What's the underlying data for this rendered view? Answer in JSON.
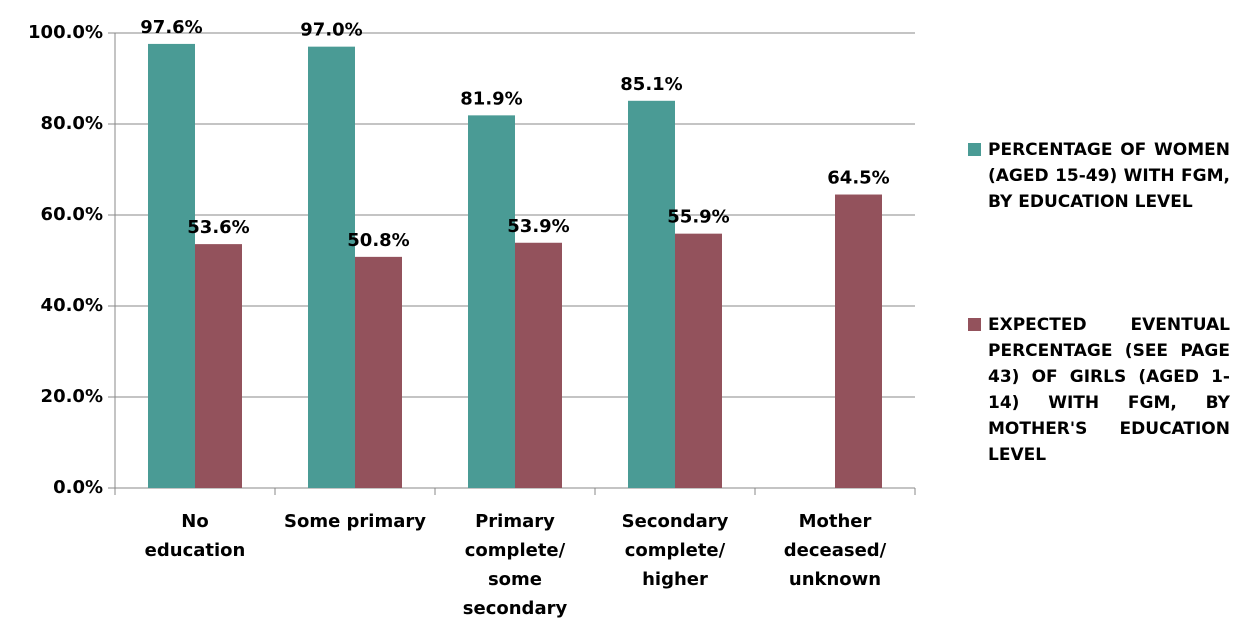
{
  "chart_data": {
    "type": "bar",
    "categories": [
      [
        "No",
        "education"
      ],
      [
        "Some primary"
      ],
      [
        "Primary",
        "complete/",
        "some",
        "secondary"
      ],
      [
        "Secondary",
        "complete/",
        "higher"
      ],
      [
        "Mother",
        "deceased/",
        "unknown"
      ]
    ],
    "series": [
      {
        "name": "PERCENTAGE OF WOMEN (AGED 15-49) WITH FGM, BY EDUCATION LEVEL",
        "color": "#4a9b95",
        "values": [
          97.6,
          97.0,
          81.9,
          85.1,
          null
        ],
        "value_labels": [
          "97.6%",
          "97.0%",
          "81.9%",
          "85.1%",
          null
        ]
      },
      {
        "name": "EXPECTED EVENTUAL PERCENTAGE (SEE PAGE 43) OF GIRLS (AGED 1-14) WITH FGM, BY MOTHER'S EDUCATION LEVEL",
        "color": "#93525c",
        "values": [
          53.6,
          50.8,
          53.9,
          55.9,
          64.5
        ],
        "value_labels": [
          "53.6%",
          "50.8%",
          "53.9%",
          "55.9%",
          "64.5%"
        ]
      }
    ],
    "ylim": [
      0,
      100
    ],
    "yticks": [
      {
        "value": 0,
        "label": "0.0%"
      },
      {
        "value": 20,
        "label": "20.0%"
      },
      {
        "value": 40,
        "label": "40.0%"
      },
      {
        "value": 60,
        "label": "60.0%"
      },
      {
        "value": 80,
        "label": "80.0%"
      },
      {
        "value": 100,
        "label": "100.0%"
      }
    ],
    "grid": true,
    "legend": "right"
  }
}
